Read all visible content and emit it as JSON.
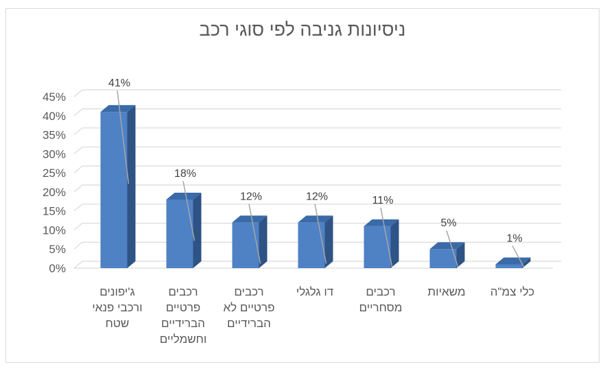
{
  "chart_data": {
    "type": "bar",
    "title": "ניסיונות גניבה לפי סוגי רכב",
    "categories": [
      [
        "ג'יפונים",
        "ורכבי פנאי",
        "שטח"
      ],
      [
        "רכבים",
        "פרטיים",
        "הברידיים",
        "וחשמליים"
      ],
      [
        "רכבים",
        "פרטיים לא",
        "הברידיים"
      ],
      [
        "דו גלגלי"
      ],
      [
        "רכבים",
        "מסחריים"
      ],
      [
        "משאיות"
      ],
      [
        "כלי צמ\"ה"
      ]
    ],
    "values": [
      41,
      18,
      12,
      12,
      11,
      5,
      1
    ],
    "data_labels": [
      "41%",
      "18%",
      "12%",
      "12%",
      "11%",
      "5%",
      "1%"
    ],
    "ylim": [
      0,
      45
    ],
    "yticks": [
      "0%",
      "5%",
      "10%",
      "15%",
      "20%",
      "25%",
      "30%",
      "35%",
      "40%",
      "45%"
    ],
    "grid": true,
    "style": "3d-column",
    "colors": {
      "front": "#4f81c5",
      "side": "#2e5385",
      "top": "#3a6aa8",
      "grid": "#d9d9d9",
      "leader": "#a6a6a6"
    }
  }
}
